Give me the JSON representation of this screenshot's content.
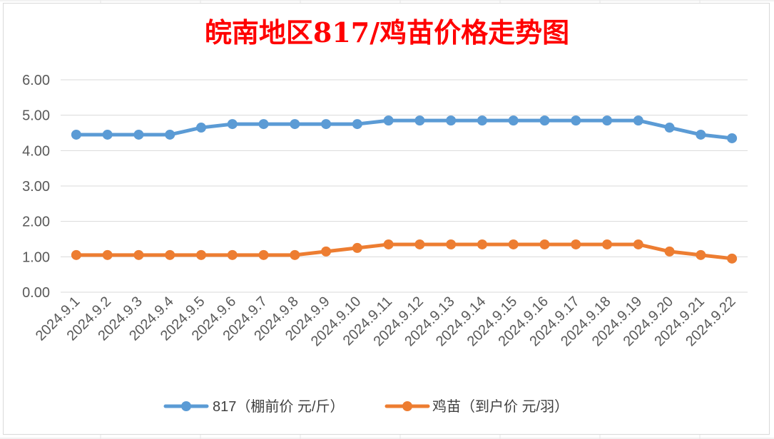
{
  "chart_data": {
    "type": "line",
    "title": "皖南地区817/鸡苗价格走势图",
    "categories": [
      "2024.9.1",
      "2024.9.2",
      "2024.9.3",
      "2024.9.4",
      "2024.9.5",
      "2024.9.6",
      "2024.9.7",
      "2024.9.8",
      "2024.9.9",
      "2024.9.10",
      "2024.9.11",
      "2024.9.12",
      "2024.9.13",
      "2024.9.14",
      "2024.9.15",
      "2024.9.16",
      "2024.9.17",
      "2024.9.18",
      "2024.9.19",
      "2024.9.20",
      "2024.9.21",
      "2024.9.22"
    ],
    "series": [
      {
        "name": "817（棚前价 元/斤）",
        "color": "#5b9bd5",
        "values": [
          4.45,
          4.45,
          4.45,
          4.45,
          4.65,
          4.75,
          4.75,
          4.75,
          4.75,
          4.75,
          4.85,
          4.85,
          4.85,
          4.85,
          4.85,
          4.85,
          4.85,
          4.85,
          4.85,
          4.65,
          4.45,
          4.35
        ]
      },
      {
        "name": "鸡苗（到户价 元/羽）",
        "color": "#ed7d31",
        "values": [
          1.05,
          1.05,
          1.05,
          1.05,
          1.05,
          1.05,
          1.05,
          1.05,
          1.15,
          1.25,
          1.35,
          1.35,
          1.35,
          1.35,
          1.35,
          1.35,
          1.35,
          1.35,
          1.35,
          1.15,
          1.05,
          0.95
        ]
      }
    ],
    "yticks": [
      "0.00",
      "1.00",
      "2.00",
      "3.00",
      "4.00",
      "5.00",
      "6.00"
    ],
    "ylim": [
      0,
      6
    ],
    "grid": true,
    "legend_position": "bottom",
    "title_color": "#ff0000"
  }
}
